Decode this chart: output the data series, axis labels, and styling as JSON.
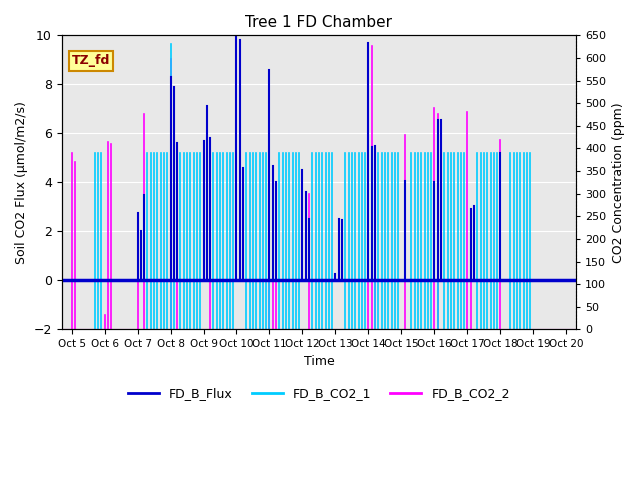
{
  "title": "Tree 1 FD Chamber",
  "xlabel": "Time",
  "ylabel_left": "Soil CO2 Flux (μmol/m2/s)",
  "ylabel_right": "CO2 Concentration (ppm)",
  "ylim_left": [
    -2,
    10
  ],
  "ylim_right": [
    0,
    650
  ],
  "yticks_left": [
    -2,
    0,
    2,
    4,
    6,
    8,
    10
  ],
  "yticks_right": [
    0,
    50,
    100,
    150,
    200,
    250,
    300,
    350,
    400,
    450,
    500,
    550,
    600,
    650
  ],
  "background_color": "#e0e0e0",
  "plot_bg_color": "#e8e8e8",
  "annotation_text": "TZ_fd",
  "annotation_bg": "#ffff99",
  "annotation_border": "#cc0000",
  "x_tick_labels": [
    "Oct 5",
    "Oct 6",
    "Oct 7",
    "Oct 8",
    "Oct 9",
    "Oct 10",
    "Oct 11",
    "Oct 12",
    "Oct 13",
    "Oct 14",
    "Oct 15",
    "Oct 16",
    "Oct 17",
    "Oct 18",
    "Oct 19",
    "Oct 20"
  ],
  "flux_color": "#0000cc",
  "co2_1_color": "#00ccff",
  "co2_2_color": "#ff00ff",
  "flux_lw": 1.5,
  "co2_lw": 1.2,
  "flux_line_lw": 2.5,
  "x_positions": [
    5.0,
    5.1,
    5.2,
    5.3,
    5.4,
    5.5,
    5.6,
    5.7,
    5.8,
    5.9,
    6.0,
    6.1,
    6.2,
    6.3,
    6.4,
    6.5,
    6.6,
    6.7,
    6.8,
    6.9,
    7.0,
    7.1,
    7.2,
    7.3,
    7.4,
    7.5,
    7.6,
    7.7,
    7.8,
    7.9,
    8.0,
    8.1,
    8.2,
    8.3,
    8.4,
    8.5,
    8.6,
    8.7,
    8.8,
    8.9,
    9.0,
    9.1,
    9.2,
    9.3,
    9.4,
    9.5,
    9.6,
    9.7,
    9.8,
    9.9,
    10.0,
    10.1,
    10.2,
    10.3,
    10.4,
    10.5,
    10.6,
    10.7,
    10.8,
    10.9,
    11.0,
    11.1,
    11.2,
    11.3,
    11.4,
    11.5,
    11.6,
    11.7,
    11.8,
    11.9,
    12.0,
    12.1,
    12.2,
    12.3,
    12.4,
    12.5,
    12.6,
    12.7,
    12.8,
    12.9,
    13.0,
    13.1,
    13.2,
    13.3,
    13.4,
    13.5,
    13.6,
    13.7,
    13.8,
    13.9,
    14.0,
    14.1,
    14.2,
    14.3,
    14.4,
    14.5,
    14.6,
    14.7,
    14.8,
    14.9,
    15.0,
    15.1,
    15.2,
    15.3,
    15.4,
    15.5,
    15.6,
    15.7,
    15.8,
    15.9,
    16.0,
    16.1,
    16.2,
    16.3,
    16.4,
    16.5,
    16.6,
    16.7,
    16.8,
    16.9,
    17.0,
    17.1,
    17.2,
    17.3,
    17.4,
    17.5,
    17.6,
    17.7,
    17.8,
    17.9,
    18.0,
    18.1,
    18.2,
    18.3,
    18.4,
    18.5,
    18.6,
    18.7,
    18.8,
    18.9,
    19.0,
    19.1,
    19.2,
    19.3,
    19.4,
    19.5,
    19.6,
    19.7,
    19.8,
    19.9
  ],
  "fd_b_flux": [
    0,
    0,
    0,
    0,
    0,
    0,
    0,
    0,
    0,
    0,
    0,
    0,
    0,
    0,
    0,
    0,
    0,
    0,
    0,
    0,
    2.75,
    2.0,
    3.5,
    0,
    0,
    0,
    0,
    0,
    0,
    0,
    8.3,
    7.9,
    5.6,
    0,
    0,
    0,
    0,
    0,
    0,
    0,
    5.7,
    7.1,
    5.8,
    0,
    0,
    0,
    0,
    0,
    0,
    0,
    9.95,
    9.8,
    4.6,
    0,
    0,
    0,
    0,
    0,
    0,
    0,
    8.6,
    4.65,
    4.0,
    0,
    0,
    0,
    0,
    0,
    0,
    0,
    4.5,
    3.6,
    2.5,
    0,
    0,
    0,
    0,
    0,
    0,
    0,
    0.25,
    2.5,
    2.45,
    0,
    0,
    0,
    0,
    0,
    0,
    0,
    9.7,
    5.45,
    5.5,
    0,
    0,
    0,
    0,
    0,
    0,
    0,
    0,
    4.05,
    0,
    0,
    0,
    0,
    0,
    0,
    0,
    0,
    4.0,
    6.55,
    6.55,
    0,
    0,
    0,
    0,
    0,
    0,
    0,
    0,
    2.9,
    3.05,
    0,
    0,
    0,
    0,
    0,
    0,
    0,
    5.2,
    0,
    0,
    0,
    0,
    0,
    0,
    0,
    0,
    0,
    0,
    0,
    0,
    0,
    0,
    0,
    0,
    0,
    0,
    0
  ],
  "fd_b_co2_1_ppm": [
    0,
    0,
    0,
    0,
    0,
    0,
    0,
    390,
    390,
    390,
    0,
    0,
    0,
    0,
    0,
    0,
    0,
    0,
    0,
    0,
    0,
    0,
    0,
    390,
    390,
    390,
    390,
    390,
    390,
    390,
    630,
    535,
    0,
    390,
    390,
    390,
    390,
    390,
    390,
    390,
    0,
    0,
    0,
    390,
    390,
    390,
    390,
    390,
    390,
    390,
    0,
    0,
    0,
    390,
    390,
    390,
    390,
    390,
    390,
    390,
    530,
    0,
    0,
    390,
    390,
    390,
    390,
    390,
    390,
    390,
    0,
    0,
    0,
    390,
    390,
    390,
    390,
    390,
    390,
    390,
    0,
    0,
    0,
    390,
    390,
    390,
    390,
    390,
    390,
    390,
    0,
    0,
    387,
    390,
    390,
    390,
    390,
    390,
    390,
    390,
    0,
    0,
    0,
    390,
    390,
    390,
    390,
    390,
    390,
    390,
    0,
    350,
    0,
    390,
    390,
    390,
    390,
    390,
    390,
    390,
    0,
    0,
    0,
    390,
    390,
    390,
    390,
    390,
    390,
    390,
    0,
    0,
    0,
    390,
    390,
    390,
    390,
    390,
    390,
    390,
    0,
    0,
    0,
    0,
    0,
    0,
    0,
    0,
    0,
    0
  ],
  "fd_b_co2_2_ppm": [
    390,
    370,
    0,
    0,
    0,
    0,
    0,
    0,
    0,
    0,
    32,
    415,
    410,
    0,
    0,
    0,
    0,
    0,
    0,
    0,
    178,
    0,
    477,
    0,
    0,
    0,
    0,
    0,
    0,
    0,
    598,
    0,
    195,
    0,
    0,
    0,
    0,
    0,
    0,
    0,
    0,
    0,
    169,
    0,
    0,
    0,
    0,
    0,
    0,
    0,
    0,
    0,
    0,
    0,
    0,
    0,
    0,
    0,
    0,
    0,
    445,
    282,
    279,
    0,
    0,
    0,
    0,
    0,
    0,
    0,
    0,
    0,
    299,
    0,
    0,
    0,
    0,
    0,
    0,
    0,
    0,
    0,
    0,
    0,
    0,
    0,
    0,
    0,
    0,
    0,
    624,
    627,
    292,
    0,
    0,
    0,
    0,
    0,
    0,
    0,
    0,
    429,
    0,
    0,
    0,
    0,
    0,
    0,
    0,
    0,
    490,
    475,
    0,
    0,
    0,
    0,
    0,
    0,
    0,
    0,
    481,
    104,
    0,
    0,
    0,
    0,
    0,
    0,
    0,
    0,
    419,
    0,
    0,
    0,
    0,
    0,
    0,
    0,
    0,
    0,
    0,
    0,
    0,
    0,
    0,
    0,
    0,
    0,
    0,
    0
  ],
  "xlim": [
    4.7,
    20.3
  ]
}
